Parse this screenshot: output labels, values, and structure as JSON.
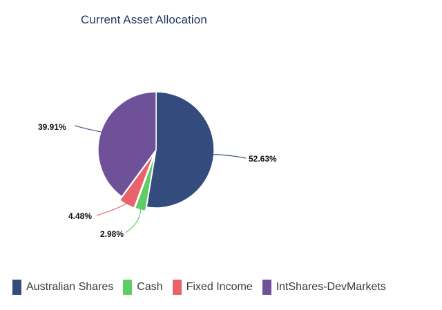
{
  "chart_data": {
    "type": "pie",
    "title": "Current Asset Allocation",
    "slices": [
      {
        "name": "Australian Shares",
        "value": 52.63,
        "label": "52.63%",
        "color": "#344b7d"
      },
      {
        "name": "Cash",
        "value": 2.98,
        "label": "2.98%",
        "color": "#5fcc64"
      },
      {
        "name": "Fixed Income",
        "value": 4.48,
        "label": "4.48%",
        "color": "#e8636b"
      },
      {
        "name": "IntShares-DevMarkets",
        "value": 39.91,
        "label": "39.91%",
        "color": "#6f5199"
      }
    ],
    "legend_position": "bottom",
    "start_angle": "12 o'clock",
    "direction": "clockwise"
  }
}
